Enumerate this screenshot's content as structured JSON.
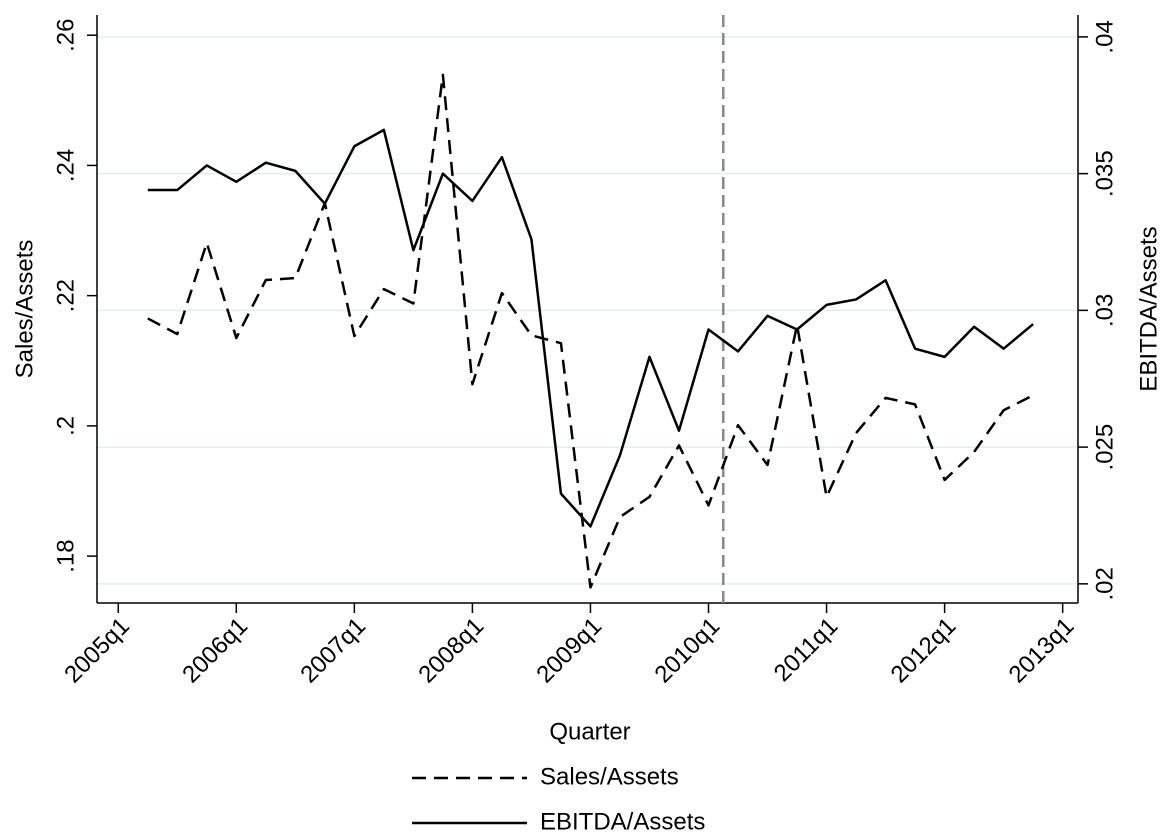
{
  "chart_data": {
    "type": "line",
    "x_label": "Quarter",
    "y_label": "Sales/Assets",
    "y2_label": "EBITDA/Assets",
    "x": [
      "2005q2",
      "2005q3",
      "2005q4",
      "2006q1",
      "2006q2",
      "2006q3",
      "2006q4",
      "2007q1",
      "2007q2",
      "2007q3",
      "2007q4",
      "2008q1",
      "2008q2",
      "2008q3",
      "2008q4",
      "2009q1",
      "2009q2",
      "2009q3",
      "2009q4",
      "2010q1",
      "2010q2",
      "2010q3",
      "2010q4",
      "2011q1",
      "2011q2",
      "2011q3",
      "2011q4",
      "2012q1",
      "2012q2",
      "2012q3",
      "2012q4"
    ],
    "series": [
      {
        "name": "Sales/Assets",
        "color": "#000000",
        "dash": true,
        "axis": "y",
        "values": [
          0.2165,
          0.2141,
          0.2281,
          0.2135,
          0.2224,
          0.2227,
          0.2342,
          0.2138,
          0.221,
          0.2188,
          0.2539,
          0.2064,
          0.2204,
          0.2139,
          0.2127,
          0.1752,
          0.186,
          0.1891,
          0.197,
          0.1878,
          0.2001,
          0.194,
          0.2155,
          0.1891,
          0.1989,
          0.2043,
          0.2033,
          0.1917,
          0.196,
          0.2024,
          0.2047
        ]
      },
      {
        "name": "EBITDA/Assets",
        "color": "#000000",
        "dash": false,
        "axis": "y2",
        "values": [
          0.0344,
          0.0344,
          0.0353,
          0.0347,
          0.0354,
          0.0351,
          0.0339,
          0.036,
          0.0366,
          0.0322,
          0.035,
          0.034,
          0.0356,
          0.0326,
          0.0233,
          0.0221,
          0.0247,
          0.0283,
          0.0256,
          0.0293,
          0.0285,
          0.0298,
          0.0293,
          0.0302,
          0.0304,
          0.0311,
          0.0286,
          0.0283,
          0.0294,
          0.0286,
          0.0295
        ]
      }
    ],
    "xlim": [
      2004.82,
      2013.13
    ],
    "xticks": [
      "2005q1",
      "2006q1",
      "2007q1",
      "2008q1",
      "2009q1",
      "2010q1",
      "2011q1",
      "2012q1",
      "2013q1"
    ],
    "ylim": [
      0.1728,
      0.2631
    ],
    "yticks": [
      {
        "value": 0.18,
        "label": ".18"
      },
      {
        "value": 0.2,
        "label": ".2"
      },
      {
        "value": 0.22,
        "label": ".22"
      },
      {
        "value": 0.24,
        "label": ".24"
      },
      {
        "value": 0.26,
        "label": ".26"
      }
    ],
    "y2lim": [
      0.0193,
      0.0408
    ],
    "y2ticks": [
      {
        "value": 0.02,
        "label": ".02"
      },
      {
        "value": 0.025,
        "label": ".025"
      },
      {
        "value": 0.03,
        "label": ".03"
      },
      {
        "value": 0.035,
        "label": ".035"
      },
      {
        "value": 0.04,
        "label": ".04"
      }
    ],
    "grid": "y2",
    "grid_color": "#e3ecee",
    "xline": 2010.125,
    "xline_color": "#888888",
    "legend": "bottom"
  }
}
